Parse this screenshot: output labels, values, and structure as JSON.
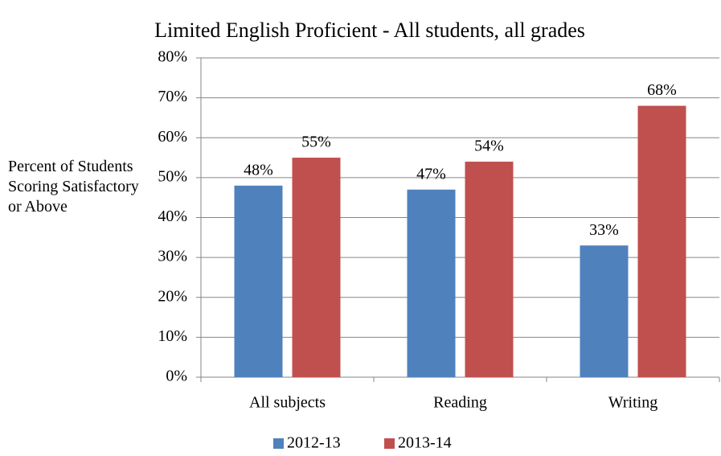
{
  "chart_data": {
    "type": "bar",
    "title": "Limited English Proficient - All students, all grades",
    "y_label": "Percent of Students Scoring Satisfactory or Above",
    "categories": [
      "All subjects",
      "Reading",
      "Writing"
    ],
    "series": [
      {
        "name": "2012-13",
        "color": "#4f81bd",
        "values": [
          48,
          47,
          33
        ],
        "value_labels": [
          "48%",
          "47%",
          "33%"
        ]
      },
      {
        "name": "2013-14",
        "color": "#c0504d",
        "values": [
          55,
          54,
          68
        ],
        "value_labels": [
          "55%",
          "54%",
          "68%"
        ]
      }
    ],
    "ylim": [
      0,
      80
    ],
    "yticks": [
      {
        "value": 0,
        "label": "0%"
      },
      {
        "value": 10,
        "label": "10%"
      },
      {
        "value": 20,
        "label": "20%"
      },
      {
        "value": 30,
        "label": "30%"
      },
      {
        "value": 40,
        "label": "40%"
      },
      {
        "value": 50,
        "label": "50%"
      },
      {
        "value": 60,
        "label": "60%"
      },
      {
        "value": 70,
        "label": "70%"
      },
      {
        "value": 80,
        "label": "80%"
      }
    ],
    "grid": true,
    "legend": "bottom"
  }
}
